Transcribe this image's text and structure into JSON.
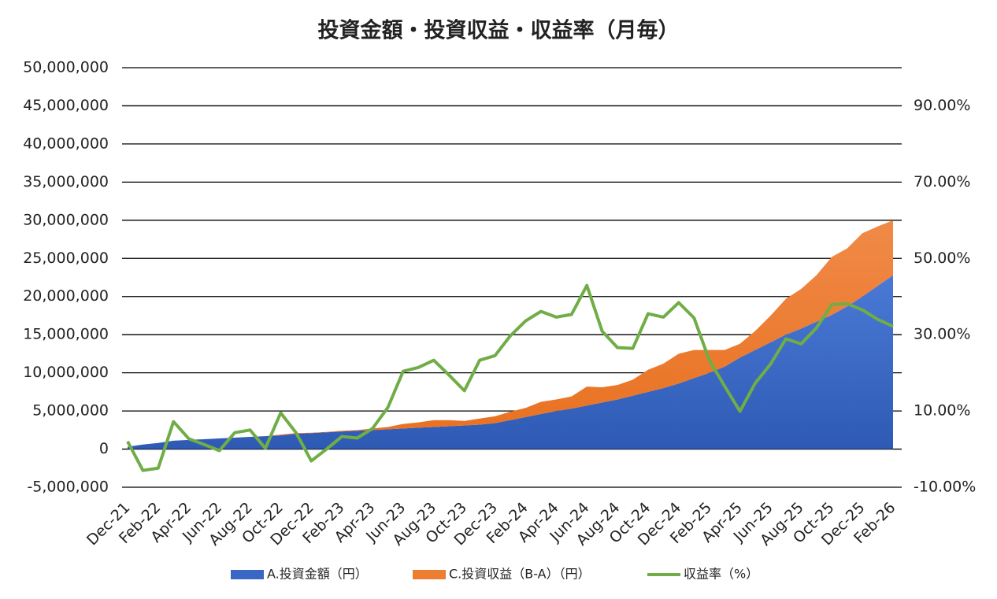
{
  "chart_data": {
    "type": "stacked-area-line",
    "title": "投資金額・投資収益・収益率（月毎）",
    "categories": [
      "Dec-21",
      null,
      "Feb-22",
      null,
      "Apr-22",
      null,
      "Jun-22",
      null,
      "Aug-22",
      null,
      "Oct-22",
      null,
      "Dec-22",
      null,
      "Feb-23",
      null,
      "Apr-23",
      null,
      "Jun-23",
      null,
      "Aug-23",
      null,
      "Oct-23",
      null,
      "Dec-23",
      null,
      "Feb-24",
      null,
      "Apr-24",
      null,
      "Jun-24",
      null,
      "Aug-24",
      null,
      "Oct-24",
      null,
      "Dec-24",
      null,
      "Feb-25",
      null,
      "Apr-25",
      null,
      "Jun-25",
      null,
      "Aug-25",
      null,
      "Oct-25",
      null,
      "Dec-25",
      null,
      "Feb-26"
    ],
    "series": [
      {
        "name": "A.投資金額（円）",
        "color": "#3a66c4",
        "kind": "area",
        "values": [
          300000,
          600000,
          800000,
          1100000,
          1200000,
          1300000,
          1400000,
          1500000,
          1600000,
          1700000,
          1800000,
          2000000,
          2100000,
          2200000,
          2300000,
          2400000,
          2500000,
          2600000,
          2700000,
          2800000,
          2900000,
          3000000,
          3100000,
          3200000,
          3400000,
          3800000,
          4200000,
          4600000,
          5000000,
          5300000,
          5700000,
          6100000,
          6500000,
          7000000,
          7500000,
          8000000,
          8600000,
          9300000,
          10000000,
          10800000,
          12000000,
          13000000,
          14000000,
          15000000,
          15800000,
          16700000,
          17600000,
          18700000,
          20000000,
          21400000,
          22800000
        ]
      },
      {
        "name": "C.投資収益（B-A）（円）",
        "color": "#ed7d31",
        "kind": "area",
        "values": [
          0,
          0,
          0,
          0,
          0,
          0,
          0,
          0,
          0,
          0,
          100000,
          100000,
          50000,
          50000,
          100000,
          100000,
          200000,
          300000,
          600000,
          700000,
          900000,
          800000,
          600000,
          800000,
          900000,
          1100000,
          1200000,
          1600000,
          1500000,
          1600000,
          2500000,
          2000000,
          1900000,
          2100000,
          2900000,
          3200000,
          3900000,
          3700000,
          3000000,
          2200000,
          1800000,
          2500000,
          3500000,
          4700000,
          5200000,
          6100000,
          7600000,
          7600000,
          8300000,
          7800000,
          7200000
        ]
      },
      {
        "name": "収益率（%）",
        "color": "#70ad47",
        "kind": "line",
        "axis": "y2",
        "values": [
          2,
          -5.6,
          -5,
          7.2,
          2.7,
          1.2,
          -0.4,
          4.3,
          5,
          0.2,
          9.5,
          4.3,
          -3.1,
          0,
          3.3,
          2.9,
          5.4,
          10.9,
          20.4,
          21.4,
          23.3,
          19.4,
          15.3,
          23.3,
          24.5,
          29.7,
          33.6,
          36.1,
          34.6,
          35.3,
          42.9,
          30.9,
          26.6,
          26.4,
          35.5,
          34.6,
          38.4,
          34.4,
          23.3,
          16.5,
          9.9,
          17.3,
          22.3,
          28.9,
          27.6,
          31.8,
          37.9,
          38.1,
          36.5,
          34,
          32.2
        ]
      }
    ],
    "ylim": [
      -5000000,
      50000000
    ],
    "yticks": [
      {
        "value": -5000000,
        "label": "-5,000,000"
      },
      0,
      {
        "value": 5000000,
        "label": "5,000,000"
      },
      {
        "value": 10000000,
        "label": "10,000,000"
      },
      {
        "value": 15000000,
        "label": "15,000,000"
      },
      {
        "value": 20000000,
        "label": "20,000,000"
      },
      {
        "value": 25000000,
        "label": "25,000,000"
      },
      {
        "value": 30000000,
        "label": "30,000,000"
      },
      {
        "value": 35000000,
        "label": "35,000,000"
      },
      {
        "value": 40000000,
        "label": "40,000,000"
      },
      {
        "value": 45000000,
        "label": "45,000,000"
      },
      {
        "value": 50000000,
        "label": "50,000,000"
      }
    ],
    "y2lim": [
      -10,
      100
    ],
    "y2ticks": [
      {
        "value": -10,
        "label": "-10.00%"
      },
      {
        "value": 10,
        "label": "10.00%"
      },
      {
        "value": 30,
        "label": "30.00%"
      },
      {
        "value": 50,
        "label": "50.00%"
      },
      {
        "value": 70,
        "label": "70.00%"
      },
      {
        "value": 90,
        "label": "90.00%"
      }
    ],
    "grid": true,
    "legend": "bottom"
  }
}
